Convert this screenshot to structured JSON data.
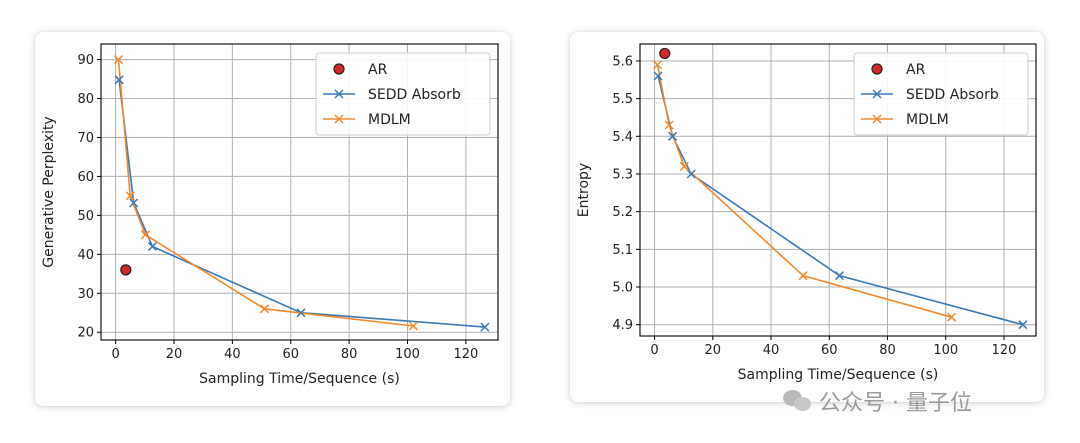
{
  "colors": {
    "sedd": "#3a79b6",
    "mdlm": "#f08a2c",
    "ar_fill": "#d62728",
    "ar_edge": "#222222",
    "grid": "#b0b0b0"
  },
  "watermark": {
    "text": "公众号 · 量子位",
    "icon": "wechat-icon"
  },
  "chart_data": [
    {
      "type": "line",
      "title": "",
      "xlabel": "Sampling Time/Sequence (s)",
      "ylabel": "Generative Perplexity",
      "xlim": [
        -5,
        131
      ],
      "ylim": [
        18,
        94
      ],
      "xticks": [
        0,
        20,
        40,
        60,
        80,
        100,
        120
      ],
      "yticks": [
        20,
        30,
        40,
        50,
        60,
        70,
        80,
        90
      ],
      "grid": true,
      "legend": "top-right",
      "series": [
        {
          "name": "AR",
          "marker": "circle",
          "x": [
            3.5
          ],
          "y": [
            36
          ]
        },
        {
          "name": "SEDD Absorb",
          "marker": "x",
          "x": [
            1.2,
            6.2,
            12.6,
            63.5,
            126.5
          ],
          "y": [
            84.8,
            53.2,
            42.0,
            25.0,
            21.3
          ]
        },
        {
          "name": "MDLM",
          "marker": "x",
          "x": [
            1.0,
            5.0,
            10.2,
            51.0,
            102.0
          ],
          "y": [
            90.0,
            55.0,
            45.0,
            26.0,
            21.6
          ]
        }
      ]
    },
    {
      "type": "line",
      "title": "",
      "xlabel": "Sampling Time/Sequence (s)",
      "ylabel": "Entropy",
      "xlim": [
        -5,
        131
      ],
      "ylim": [
        4.87,
        5.645
      ],
      "xticks": [
        0,
        20,
        40,
        60,
        80,
        100,
        120
      ],
      "yticks": [
        4.9,
        5.0,
        5.1,
        5.2,
        5.3,
        5.4,
        5.5,
        5.6
      ],
      "grid": true,
      "legend": "top-right",
      "series": [
        {
          "name": "AR",
          "marker": "circle",
          "x": [
            3.5
          ],
          "y": [
            5.62
          ]
        },
        {
          "name": "SEDD Absorb",
          "marker": "x",
          "x": [
            1.2,
            6.2,
            12.6,
            63.5,
            126.5
          ],
          "y": [
            5.56,
            5.4,
            5.3,
            5.03,
            4.9
          ]
        },
        {
          "name": "MDLM",
          "marker": "x",
          "x": [
            1.0,
            5.0,
            10.2,
            51.0,
            102.0
          ],
          "y": [
            5.59,
            5.43,
            5.32,
            5.03,
            4.92
          ]
        }
      ]
    }
  ]
}
